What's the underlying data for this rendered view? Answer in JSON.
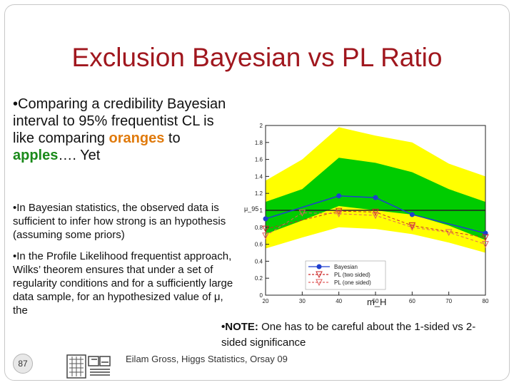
{
  "slide": {
    "title": "Exclusion Bayesian vs PL Ratio",
    "bullet1": {
      "prefix": "•Comparing a credibility Bayesian interval to 95% frequentist CL is like comparing ",
      "orange": "oranges",
      "mid": " to ",
      "apples": "apples",
      "suffix": "…. Yet"
    },
    "bullet2": "•In Bayesian statistics, the observed data is sufficient to infer how strong is an hypothesis (assuming some priors)",
    "bullet3": "•In the Profile Likelihood frequentist approach, Wilks’ theorem ensures that under a set of regularity conditions and for a sufficiently large data sample, for an hypothesized value of μ, the",
    "note": {
      "label": "•NOTE:",
      "text": " One has to be careful about the 1-sided vs 2-sided significance"
    },
    "page_number": "87",
    "footer": "Eilam Gross, Higgs Statistics, Orsay 09",
    "colors": {
      "title": "#a0171e",
      "orange": "#e07a0c",
      "green": "#1a8a1a"
    }
  },
  "chart_data": {
    "type": "line",
    "xlabel": "m_H",
    "ylabel": "μ_95",
    "xlim": [
      20,
      80
    ],
    "ylim": [
      0,
      2
    ],
    "xticks": [
      20,
      30,
      40,
      50,
      60,
      70,
      80
    ],
    "yticks": [
      0,
      0.2,
      0.4,
      0.6,
      0.8,
      1,
      1.2,
      1.4,
      1.6,
      1.8,
      2
    ],
    "ytick_labels": [
      "0",
      "0.2",
      "0.4",
      "0.6",
      "0.8",
      "1",
      "1.2",
      "1.4",
      "1.6",
      "1.8",
      "2"
    ],
    "reference_line": 1,
    "bands": {
      "x": [
        20,
        30,
        40,
        50,
        60,
        70,
        80
      ],
      "yellow_upper": [
        1.35,
        1.6,
        1.98,
        1.88,
        1.8,
        1.55,
        1.4
      ],
      "green_upper": [
        1.1,
        1.25,
        1.62,
        1.56,
        1.45,
        1.25,
        1.1
      ],
      "green_lower": [
        0.72,
        0.88,
        1.05,
        1.0,
        0.95,
        0.82,
        0.65
      ],
      "yellow_lower": [
        0.55,
        0.68,
        0.8,
        0.78,
        0.72,
        0.62,
        0.5
      ],
      "yellow_color": "#ffff00",
      "green_color": "#00cc00"
    },
    "series": [
      {
        "name": "Bayesian",
        "x": [
          20,
          40,
          50,
          60,
          80
        ],
        "y": [
          0.9,
          1.17,
          1.15,
          0.95,
          0.73
        ],
        "color": "#1f3fcf",
        "style": "solid",
        "marker": "circle"
      },
      {
        "name": "PL (two sided)",
        "x": [
          20,
          40,
          50,
          60,
          80
        ],
        "y": [
          0.78,
          0.99,
          0.98,
          0.82,
          0.68
        ],
        "color": "#cc2a2a",
        "style": "dashed",
        "marker": "triangle-down"
      },
      {
        "name": "PL (one sided)",
        "x": [
          20,
          30,
          40,
          50,
          60,
          70,
          80
        ],
        "y": [
          0.7,
          0.97,
          0.96,
          0.94,
          0.8,
          0.74,
          0.6
        ],
        "color": "#e06060",
        "style": "dashed",
        "marker": "triangle-down"
      }
    ],
    "legend": {
      "placement": "bottom-center",
      "entries": [
        "Bayesian",
        "PL (two sided)",
        "PL (one sided)"
      ]
    }
  }
}
